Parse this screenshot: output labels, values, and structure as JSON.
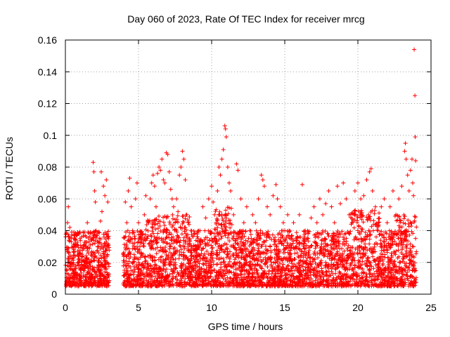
{
  "chart_data": {
    "type": "scatter",
    "title": "Day 060 of 2023, Rate Of TEC Index for receiver mrcg",
    "xlabel": "GPS time / hours",
    "ylabel": "ROTI / TECUs",
    "xlim": [
      0,
      25
    ],
    "ylim": [
      0,
      0.16
    ],
    "xticks": [
      0,
      5,
      10,
      15,
      20,
      25
    ],
    "xtick_labels": [
      "0",
      "5",
      "10",
      "15",
      "20",
      "25"
    ],
    "yticks": [
      0,
      0.02,
      0.04,
      0.06,
      0.08,
      0.1,
      0.12,
      0.14,
      0.16
    ],
    "ytick_labels": [
      "0",
      "0.02",
      "0.04",
      "0.06",
      "0.08",
      "0.1",
      "0.12",
      "0.14",
      "0.16"
    ],
    "grid": true,
    "marker": "plus",
    "color": "#ff0000",
    "series": [
      {
        "points": [
          [
            0.05,
            0.006
          ],
          [
            0.1,
            0.028
          ],
          [
            0.15,
            0.045
          ],
          [
            0.2,
            0.055
          ],
          [
            0.25,
            0.036
          ],
          [
            0.3,
            0.042
          ],
          [
            0.4,
            0.02
          ],
          [
            0.5,
            0.015
          ],
          [
            0.6,
            0.03
          ],
          [
            0.75,
            0.01
          ],
          [
            0.9,
            0.025
          ],
          [
            1.0,
            0.035
          ],
          [
            1.1,
            0.018
          ],
          [
            1.25,
            0.012
          ],
          [
            1.4,
            0.03
          ],
          [
            1.5,
            0.045
          ],
          [
            1.6,
            0.022
          ],
          [
            1.7,
            0.016
          ],
          [
            1.8,
            0.034
          ],
          [
            1.9,
            0.083
          ],
          [
            1.95,
            0.077
          ],
          [
            2.0,
            0.065
          ],
          [
            2.05,
            0.058
          ],
          [
            2.1,
            0.04
          ],
          [
            2.2,
            0.03
          ],
          [
            2.3,
            0.02
          ],
          [
            2.4,
            0.046
          ],
          [
            2.45,
            0.077
          ],
          [
            2.5,
            0.052
          ],
          [
            2.6,
            0.068
          ],
          [
            2.7,
            0.062
          ],
          [
            2.8,
            0.072
          ],
          [
            2.9,
            0.058
          ],
          [
            2.95,
            0.035
          ],
          [
            4.05,
            0.012
          ],
          [
            4.1,
            0.058
          ],
          [
            4.2,
            0.045
          ],
          [
            4.3,
            0.065
          ],
          [
            4.4,
            0.073
          ],
          [
            4.5,
            0.055
          ],
          [
            4.6,
            0.04
          ],
          [
            4.7,
            0.025
          ],
          [
            4.8,
            0.06
          ],
          [
            4.9,
            0.07
          ],
          [
            5.0,
            0.045
          ],
          [
            5.1,
            0.03
          ],
          [
            5.2,
            0.015
          ],
          [
            5.3,
            0.038
          ],
          [
            5.4,
            0.05
          ],
          [
            5.5,
            0.062
          ],
          [
            5.6,
            0.035
          ],
          [
            5.7,
            0.045
          ],
          [
            5.8,
            0.06
          ],
          [
            5.9,
            0.07
          ],
          [
            6.0,
            0.075
          ],
          [
            6.1,
            0.068
          ],
          [
            6.2,
            0.055
          ],
          [
            6.3,
            0.076
          ],
          [
            6.4,
            0.08
          ],
          [
            6.5,
            0.078
          ],
          [
            6.6,
            0.085
          ],
          [
            6.7,
            0.072
          ],
          [
            6.8,
            0.07
          ],
          [
            6.9,
            0.089
          ],
          [
            7.0,
            0.088
          ],
          [
            7.1,
            0.077
          ],
          [
            7.2,
            0.066
          ],
          [
            7.3,
            0.06
          ],
          [
            7.4,
            0.055
          ],
          [
            7.5,
            0.045
          ],
          [
            7.6,
            0.06
          ],
          [
            7.7,
            0.052
          ],
          [
            7.8,
            0.075
          ],
          [
            7.9,
            0.08
          ],
          [
            8.0,
            0.09
          ],
          [
            8.1,
            0.085
          ],
          [
            8.2,
            0.072
          ],
          [
            8.3,
            0.05
          ],
          [
            8.4,
            0.045
          ],
          [
            8.5,
            0.035
          ],
          [
            8.6,
            0.03
          ],
          [
            8.8,
            0.02
          ],
          [
            9.0,
            0.028
          ],
          [
            9.2,
            0.04
          ],
          [
            9.4,
            0.055
          ],
          [
            9.6,
            0.048
          ],
          [
            9.8,
            0.06
          ],
          [
            10.0,
            0.068
          ],
          [
            10.1,
            0.058
          ],
          [
            10.2,
            0.05
          ],
          [
            10.3,
            0.045
          ],
          [
            10.4,
            0.065
          ],
          [
            10.5,
            0.08
          ],
          [
            10.6,
            0.075
          ],
          [
            10.7,
            0.085
          ],
          [
            10.8,
            0.091
          ],
          [
            10.9,
            0.106
          ],
          [
            10.95,
            0.104
          ],
          [
            11.0,
            0.099
          ],
          [
            11.1,
            0.08
          ],
          [
            11.2,
            0.07
          ],
          [
            11.3,
            0.065
          ],
          [
            11.5,
            0.05
          ],
          [
            11.7,
            0.082
          ],
          [
            11.8,
            0.078
          ],
          [
            12.0,
            0.06
          ],
          [
            12.2,
            0.045
          ],
          [
            12.4,
            0.055
          ],
          [
            12.6,
            0.04
          ],
          [
            12.8,
            0.05
          ],
          [
            13.0,
            0.045
          ],
          [
            13.2,
            0.06
          ],
          [
            13.4,
            0.075
          ],
          [
            13.5,
            0.072
          ],
          [
            13.6,
            0.068
          ],
          [
            13.8,
            0.055
          ],
          [
            14.0,
            0.05
          ],
          [
            14.2,
            0.062
          ],
          [
            14.4,
            0.069
          ],
          [
            14.5,
            0.06
          ],
          [
            14.7,
            0.055
          ],
          [
            14.9,
            0.045
          ],
          [
            15.0,
            0.04
          ],
          [
            15.2,
            0.05
          ],
          [
            15.4,
            0.035
          ],
          [
            15.6,
            0.045
          ],
          [
            15.8,
            0.03
          ],
          [
            16.0,
            0.05
          ],
          [
            16.2,
            0.069
          ],
          [
            16.4,
            0.04
          ],
          [
            16.6,
            0.035
          ],
          [
            16.8,
            0.048
          ],
          [
            17.0,
            0.055
          ],
          [
            17.2,
            0.045
          ],
          [
            17.4,
            0.06
          ],
          [
            17.6,
            0.05
          ],
          [
            17.8,
            0.057
          ],
          [
            18.0,
            0.065
          ],
          [
            18.2,
            0.055
          ],
          [
            18.4,
            0.045
          ],
          [
            18.6,
            0.068
          ],
          [
            18.8,
            0.057
          ],
          [
            19.0,
            0.07
          ],
          [
            19.2,
            0.06
          ],
          [
            19.4,
            0.05
          ],
          [
            19.6,
            0.045
          ],
          [
            19.8,
            0.065
          ],
          [
            20.0,
            0.07
          ],
          [
            20.2,
            0.06
          ],
          [
            20.4,
            0.062
          ],
          [
            20.6,
            0.072
          ],
          [
            20.8,
            0.077
          ],
          [
            20.9,
            0.079
          ],
          [
            21.0,
            0.065
          ],
          [
            21.2,
            0.055
          ],
          [
            21.4,
            0.045
          ],
          [
            21.6,
            0.055
          ],
          [
            21.8,
            0.06
          ],
          [
            22.0,
            0.045
          ],
          [
            22.2,
            0.055
          ],
          [
            22.4,
            0.065
          ],
          [
            22.6,
            0.05
          ],
          [
            22.8,
            0.06
          ],
          [
            23.0,
            0.068
          ],
          [
            23.2,
            0.09
          ],
          [
            23.25,
            0.095
          ],
          [
            23.3,
            0.085
          ],
          [
            23.4,
            0.075
          ],
          [
            23.5,
            0.065
          ],
          [
            23.6,
            0.078
          ],
          [
            23.7,
            0.085
          ],
          [
            23.75,
            0.07
          ],
          [
            23.8,
            0.062
          ],
          [
            23.85,
            0.154
          ],
          [
            23.9,
            0.125
          ],
          [
            23.92,
            0.099
          ],
          [
            23.95,
            0.084
          ]
        ]
      }
    ]
  }
}
